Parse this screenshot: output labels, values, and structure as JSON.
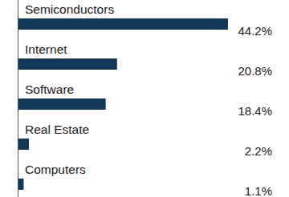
{
  "chart_data": {
    "type": "bar",
    "orientation": "horizontal",
    "categories": [
      "Semiconductors",
      "Internet",
      "Software",
      "Real Estate",
      "Computers"
    ],
    "values": [
      44.2,
      20.8,
      18.4,
      2.2,
      1.1
    ],
    "value_labels": [
      "44.2%",
      "20.8%",
      "18.4%",
      "2.2%",
      "1.1%"
    ],
    "color": "#123a58",
    "xlim": [
      0,
      44.2
    ],
    "data_labels": true,
    "tick_labels": false,
    "grid": false
  }
}
